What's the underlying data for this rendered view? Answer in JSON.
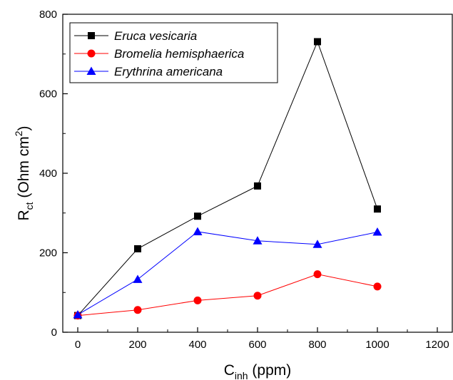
{
  "chart_data": {
    "type": "line",
    "title": "",
    "xlabel": {
      "main": "C",
      "sub": "inh",
      "unit": " (ppm)"
    },
    "ylabel": {
      "main": "R",
      "sub": "ct",
      "unit_pre": " (Ohm cm",
      "sup": "2",
      "unit_post": ")"
    },
    "xlim": [
      -50,
      1250
    ],
    "ylim": [
      0,
      800
    ],
    "xticks": [
      0,
      200,
      400,
      600,
      800,
      1000,
      1200
    ],
    "yticks": [
      0,
      200,
      400,
      600,
      800
    ],
    "x_tick_labels": [
      "0",
      "200",
      "400",
      "600",
      "800",
      "1000",
      "1200"
    ],
    "y_tick_labels": [
      "0",
      "200",
      "400",
      "600",
      "800"
    ],
    "grid": false,
    "legend_position": "top-left",
    "x": [
      0,
      200,
      400,
      600,
      800,
      1000
    ],
    "series": [
      {
        "name": "Eruca vesicaria",
        "values": [
          42,
          210,
          292,
          368,
          731,
          310
        ],
        "color": "#000000",
        "marker": "square"
      },
      {
        "name": "Bromelia hemisphaerica",
        "values": [
          42,
          56,
          80,
          92,
          146,
          115
        ],
        "color": "#ff0000",
        "marker": "circle"
      },
      {
        "name": "Erythrina americana",
        "values": [
          44,
          133,
          253,
          230,
          221,
          252
        ],
        "color": "#0000ff",
        "marker": "triangle"
      }
    ]
  }
}
